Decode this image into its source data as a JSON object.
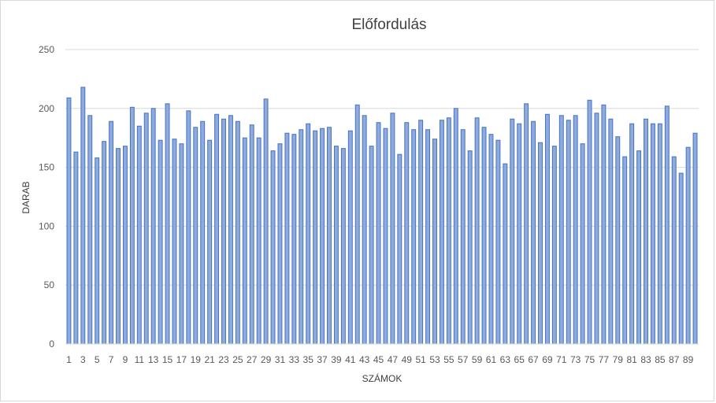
{
  "chart_data": {
    "type": "bar",
    "title": "Előfordulás",
    "xlabel": "SZÁMOK",
    "ylabel": "DARAB",
    "ylim": [
      0,
      250
    ],
    "yticks": [
      0,
      50,
      100,
      150,
      200,
      250
    ],
    "grid": true,
    "legend": "none",
    "colors": {
      "bar_fill": "#8faadc",
      "bar_stroke": "#4472c4",
      "grid": "#d9d9d9"
    },
    "categories": [
      1,
      2,
      3,
      4,
      5,
      6,
      7,
      8,
      9,
      10,
      11,
      12,
      13,
      14,
      15,
      16,
      17,
      18,
      19,
      20,
      21,
      22,
      23,
      24,
      25,
      26,
      27,
      28,
      29,
      30,
      31,
      32,
      33,
      34,
      35,
      36,
      37,
      38,
      39,
      40,
      41,
      42,
      43,
      44,
      45,
      46,
      47,
      48,
      49,
      50,
      51,
      52,
      53,
      54,
      55,
      56,
      57,
      58,
      59,
      60,
      61,
      62,
      63,
      64,
      65,
      66,
      67,
      68,
      69,
      70,
      71,
      72,
      73,
      74,
      75,
      76,
      77,
      78,
      79,
      80,
      81,
      82,
      83,
      84,
      85,
      86,
      87,
      88,
      89,
      90
    ],
    "xtick_labels": [
      "1",
      "3",
      "5",
      "7",
      "9",
      "11",
      "13",
      "15",
      "17",
      "19",
      "21",
      "23",
      "25",
      "27",
      "29",
      "31",
      "33",
      "35",
      "37",
      "39",
      "41",
      "43",
      "45",
      "47",
      "49",
      "51",
      "53",
      "55",
      "57",
      "59",
      "61",
      "63",
      "65",
      "67",
      "69",
      "71",
      "73",
      "75",
      "77",
      "79",
      "81",
      "83",
      "85",
      "87",
      "89"
    ],
    "values": [
      209,
      163,
      218,
      194,
      158,
      172,
      189,
      166,
      168,
      201,
      185,
      196,
      200,
      173,
      204,
      174,
      170,
      198,
      184,
      189,
      173,
      195,
      191,
      194,
      189,
      175,
      186,
      175,
      208,
      164,
      170,
      179,
      178,
      182,
      187,
      181,
      183,
      184,
      168,
      166,
      181,
      203,
      194,
      168,
      188,
      183,
      196,
      161,
      188,
      182,
      190,
      182,
      174,
      190,
      192,
      200,
      182,
      164,
      192,
      184,
      178,
      173,
      153,
      191,
      187,
      204,
      189,
      171,
      195,
      168,
      194,
      190,
      194,
      170,
      207,
      196,
      203,
      191,
      176,
      159,
      187,
      164,
      191,
      187,
      187,
      202,
      159,
      145,
      167,
      179
    ]
  }
}
